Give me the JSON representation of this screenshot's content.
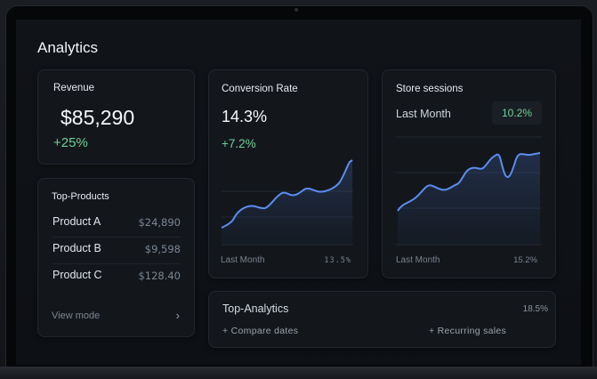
{
  "page": {
    "title": "Analytics"
  },
  "revenue": {
    "label": "Revenue",
    "value": "$85,290",
    "change": "+25%"
  },
  "top_products": {
    "label": "Top-Products",
    "items": [
      {
        "name": "Product A",
        "value": "$24,890"
      },
      {
        "name": "Product B",
        "value": "$9,598"
      },
      {
        "name": "Product C",
        "value": "$128.40"
      }
    ],
    "view_mode": "View mode",
    "chevron": "›"
  },
  "conversion": {
    "label": "Conversion Rate",
    "value": "14.3%",
    "change": "+7.2%",
    "footer_left": "Last Month",
    "footer_right": "13.5%"
  },
  "sessions": {
    "label": "Store sessions",
    "period": "Last Month",
    "badge": "10.2%",
    "footer_left": "Last Month",
    "footer_right": "15.2%"
  },
  "top_analytics": {
    "label": "Top-Analytics",
    "value": "18.5%",
    "compare": "+ Compare dates",
    "recurring": "+ Recurring sales"
  },
  "colors": {
    "accent": "#5b8def",
    "positive": "#6fcf97",
    "card": "#13171c"
  }
}
